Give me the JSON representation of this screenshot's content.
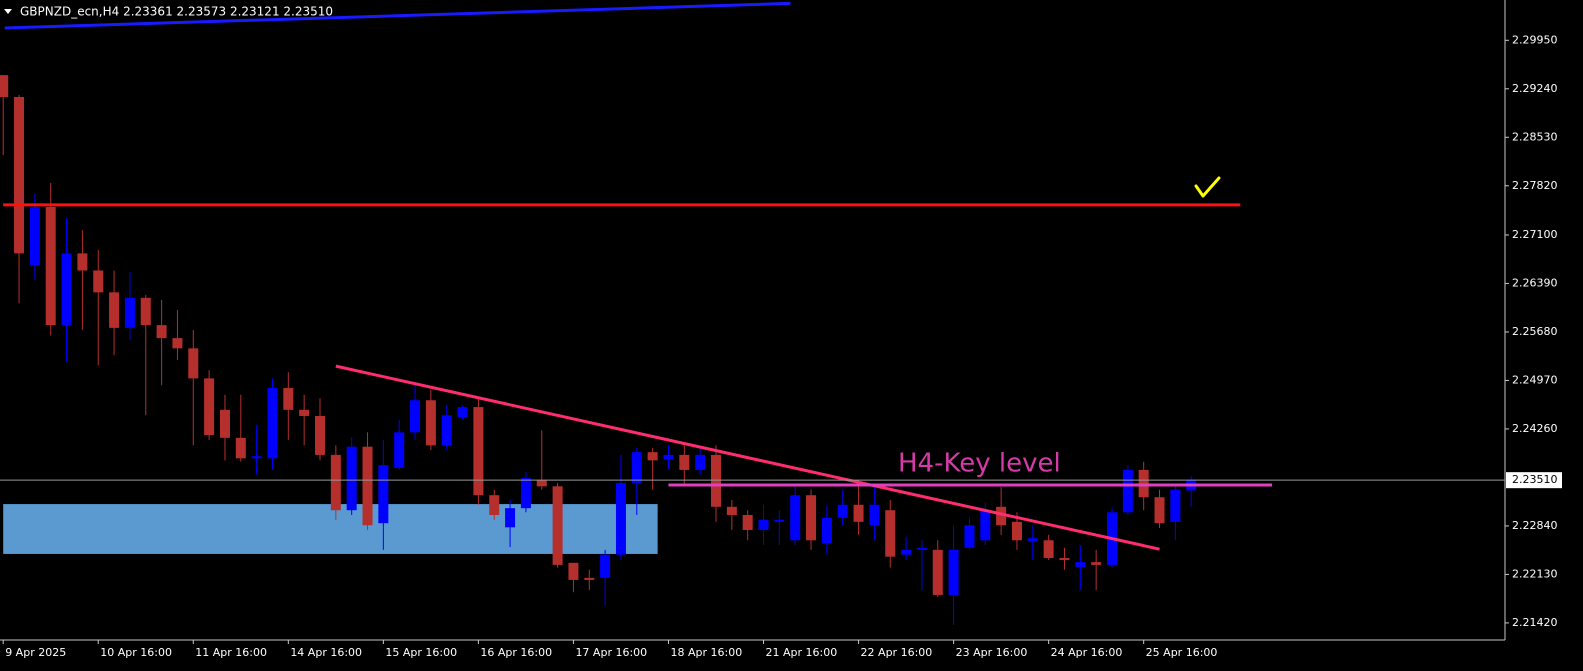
{
  "chart_data": {
    "type": "candlestick",
    "title": "GBPNZD_ecn,H4  2.23361 2.23573 2.23121 2.23510",
    "annotation": "H4-Key level",
    "categories": [
      "9 Apr 2025",
      null,
      null,
      null,
      null,
      null,
      "10 Apr 16:00",
      null,
      null,
      null,
      null,
      null,
      "11 Apr 16:00",
      null,
      null,
      null,
      null,
      null,
      "14 Apr 16:00",
      null,
      null,
      null,
      null,
      null,
      "15 Apr 16:00",
      null,
      null,
      null,
      null,
      null,
      "16 Apr 16:00",
      null,
      null,
      null,
      null,
      null,
      "17 Apr 16:00",
      null,
      null,
      null,
      null,
      null,
      "18 Apr 16:00",
      null,
      null,
      null,
      null,
      null,
      "21 Apr 16:00",
      null,
      null,
      null,
      null,
      null,
      "22 Apr 16:00",
      null,
      null,
      null,
      null,
      null,
      "23 Apr 16:00",
      null,
      null,
      null,
      null,
      null,
      "24 Apr 16:00",
      null,
      null,
      null,
      null,
      null,
      "25 Apr 16:00",
      null,
      null,
      null
    ],
    "open": [
      2.2944,
      2.2912,
      2.2666,
      2.2751,
      2.2578,
      2.2683,
      2.2658,
      2.2626,
      2.2574,
      2.2618,
      2.2578,
      2.2559,
      2.2544,
      2.25,
      2.2454,
      2.2413,
      2.2383,
      2.2383,
      2.2486,
      2.2454,
      2.2445,
      2.2388,
      2.2307,
      2.24,
      2.2288,
      2.2369,
      2.2421,
      2.2468,
      2.2402,
      2.2443,
      2.2458,
      2.2329,
      2.2282,
      2.231,
      2.2351,
      2.2342,
      2.223,
      2.2208,
      2.2208,
      2.2242,
      2.2347,
      2.2392,
      2.2382,
      2.2388,
      2.2366,
      2.2388,
      2.2312,
      2.23,
      2.2278,
      2.229,
      2.2263,
      2.2329,
      2.2259,
      2.2296,
      2.2315,
      2.2285,
      2.2307,
      2.2242,
      2.2249,
      2.2249,
      2.2183,
      2.2252,
      2.2263,
      2.2312,
      2.229,
      2.2262,
      2.2263,
      2.2237,
      2.2224,
      2.2231,
      2.2227,
      2.2304,
      2.2366,
      2.2326,
      2.229,
      2.2336
    ],
    "high": [
      2.2944,
      2.2915,
      2.2771,
      2.2786,
      2.2735,
      2.2717,
      2.2688,
      2.2658,
      2.2656,
      2.2622,
      2.2615,
      2.26,
      2.2571,
      2.2512,
      2.2476,
      2.2476,
      2.2432,
      2.25,
      2.2509,
      2.2476,
      2.2471,
      2.2402,
      2.2414,
      2.2421,
      2.241,
      2.2439,
      2.249,
      2.2483,
      2.2461,
      2.2461,
      2.2471,
      2.2337,
      2.2322,
      2.2363,
      2.2424,
      2.2347,
      2.223,
      2.222,
      2.2249,
      2.2388,
      2.2398,
      2.2398,
      2.2402,
      2.2402,
      2.2398,
      2.2402,
      2.2322,
      2.2307,
      2.2315,
      2.2307,
      2.2341,
      2.2337,
      2.2315,
      2.2337,
      2.2351,
      2.2344,
      2.2322,
      2.2268,
      2.2263,
      2.2263,
      2.2285,
      2.2296,
      2.2318,
      2.2341,
      2.2304,
      2.2285,
      2.2271,
      2.2252,
      2.2256,
      2.2249,
      2.231,
      2.2373,
      2.2378,
      2.2337,
      2.2344,
      2.2357
    ],
    "low": [
      2.2827,
      2.261,
      2.2644,
      2.2563,
      2.2524,
      2.2571,
      2.2519,
      2.2534,
      2.2556,
      2.2446,
      2.249,
      2.2527,
      2.2402,
      2.241,
      2.238,
      2.2378,
      2.2359,
      2.2366,
      2.241,
      2.2402,
      2.238,
      2.2293,
      2.23,
      2.2278,
      2.2249,
      2.2366,
      2.241,
      2.2395,
      2.2395,
      2.2439,
      2.2315,
      2.2293,
      2.2253,
      2.2304,
      2.2337,
      2.2223,
      2.2187,
      2.219,
      2.2168,
      2.2234,
      2.23,
      2.2337,
      2.2366,
      2.2344,
      2.2359,
      2.229,
      2.2278,
      2.2263,
      2.2256,
      2.2256,
      2.2256,
      2.2249,
      2.2242,
      2.2285,
      2.2271,
      2.2263,
      2.2223,
      2.2234,
      2.219,
      2.218,
      2.2139,
      2.2249,
      2.2256,
      2.2271,
      2.2249,
      2.2234,
      2.2234,
      2.222,
      2.219,
      2.219,
      2.2223,
      2.23,
      2.2307,
      2.2281,
      2.2263,
      2.2312
    ],
    "close": [
      2.2912,
      2.2683,
      2.2751,
      2.2578,
      2.2683,
      2.2658,
      2.2626,
      2.2574,
      2.2618,
      2.2578,
      2.2559,
      2.2544,
      2.25,
      2.2417,
      2.2413,
      2.2383,
      2.2386,
      2.2486,
      2.2454,
      2.2445,
      2.2388,
      2.2307,
      2.24,
      2.2285,
      2.2373,
      2.2421,
      2.2468,
      2.2402,
      2.2446,
      2.2458,
      2.2329,
      2.23,
      2.231,
      2.2354,
      2.2342,
      2.2227,
      2.2205,
      2.2205,
      2.2242,
      2.2347,
      2.2392,
      2.238,
      2.2388,
      2.2366,
      2.2388,
      2.2312,
      2.23,
      2.2278,
      2.2293,
      2.2293,
      2.2329,
      2.2263,
      2.2296,
      2.2315,
      2.229,
      2.2315,
      2.2239,
      2.2249,
      2.2252,
      2.2183,
      2.2249,
      2.2285,
      2.2307,
      2.2285,
      2.2263,
      2.2266,
      2.2237,
      2.2234,
      2.2231,
      2.2227,
      2.2304,
      2.2366,
      2.2326,
      2.2288,
      2.2337,
      2.2351
    ],
    "up_color": "#0000ff",
    "down_color": "#b5302d",
    "ylim": [
      2.2117,
      2.3054
    ],
    "yticks": [
      {
        "value": 2.2995,
        "label": "2.29950"
      },
      {
        "value": 2.2924,
        "label": "2.29240"
      },
      {
        "value": 2.2853,
        "label": "2.28530"
      },
      {
        "value": 2.2782,
        "label": "2.27820"
      },
      {
        "value": 2.271,
        "label": "2.27100"
      },
      {
        "value": 2.2639,
        "label": "2.26390"
      },
      {
        "value": 2.2568,
        "label": "2.25680"
      },
      {
        "value": 2.2497,
        "label": "2.24970"
      },
      {
        "value": 2.2426,
        "label": "2.24260"
      },
      {
        "value": 2.2284,
        "label": "2.22840"
      },
      {
        "value": 2.2213,
        "label": "2.22130"
      },
      {
        "value": 2.2142,
        "label": "2.21420"
      }
    ],
    "current": {
      "value": 2.2351,
      "label": "2.23510"
    },
    "lines": [
      {
        "x": [
          0.1,
          49.7
        ],
        "y": [
          2.3013,
          2.3049
        ],
        "color": "#1a1aff"
      },
      {
        "x": [
          0,
          78.1
        ],
        "y": [
          2.2754,
          2.2754
        ],
        "color": "#ff1010"
      },
      {
        "x": [
          21,
          73
        ],
        "y": [
          2.2518,
          2.225
        ],
        "color": "#ff2d6f"
      },
      {
        "x": [
          42,
          80.1
        ],
        "y": [
          2.2344,
          2.2344
        ],
        "color": "#e040c0"
      }
    ],
    "zones": [
      {
        "x": [
          0,
          41
        ],
        "y": [
          2.2243,
          2.2316
        ],
        "color": "#5a9ad0"
      }
    ]
  }
}
